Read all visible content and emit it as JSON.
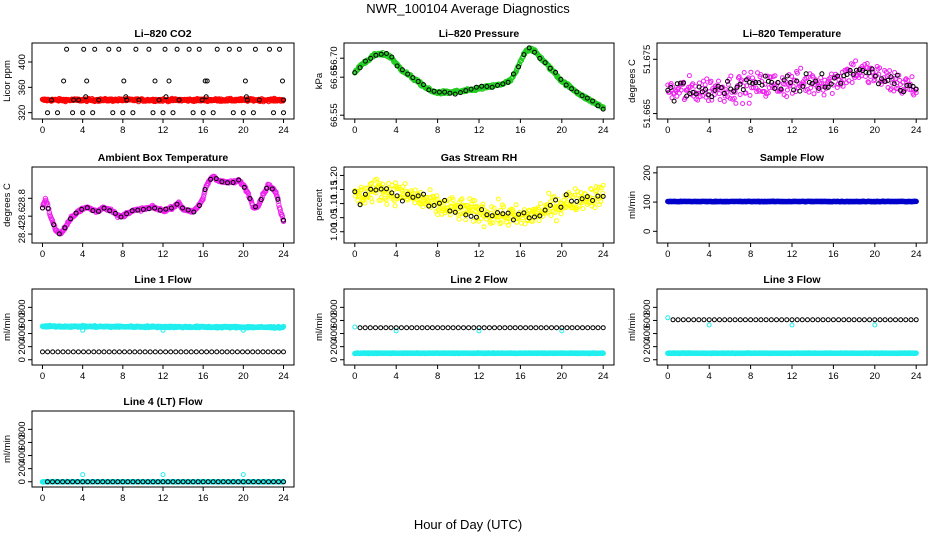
{
  "figure": {
    "title": "NWR_100104  Average Diagnostics",
    "xlabel": "Hour of Day (UTC)"
  },
  "chart_data": [
    {
      "id": "co2",
      "type": "scatter",
      "title": "Li–820 CO2",
      "ylabel": "Licor ppm",
      "xlim": [
        0,
        24
      ],
      "xticks": [
        "0",
        "4",
        "8",
        "12",
        "16",
        "20",
        "24"
      ],
      "ylim": [
        310,
        430
      ],
      "yticks": [
        "320",
        "360",
        "400"
      ],
      "series": [
        {
          "color": "#ff0000",
          "style": "dense-band",
          "x": [
            0,
            24
          ],
          "y": [
            340,
            340
          ],
          "noise": 2.0,
          "n": 420
        },
        {
          "color": "#000000",
          "style": "sparse",
          "x": [
            0.9,
            2.1,
            2.4,
            3.1,
            3.6,
            4.1,
            4.4,
            5.2,
            5.6,
            6.6,
            7.6,
            8.1,
            8.4,
            9.3,
            9.6,
            10.6,
            11.2,
            11.6,
            12.2,
            12.6,
            13.4,
            13.6,
            14.6,
            15.6,
            15.9,
            16.2,
            16.4,
            17.4,
            18.6,
            19.6,
            20.2,
            20.4,
            21.2,
            21.6,
            22.6,
            23.6,
            23.9,
            0.5,
            1.5,
            3.0,
            4.0,
            5.0,
            7.0,
            8.0,
            9.0,
            11.0,
            12.0,
            13.0,
            15.0,
            16.0,
            17.0,
            19.0,
            20.0,
            21.0,
            23.0,
            24.0,
            4.3,
            8.3,
            12.3,
            16.3,
            20.3,
            24.0
          ],
          "y": [
            340,
            370,
            420,
            340,
            340,
            420,
            370,
            420,
            340,
            420,
            420,
            370,
            340,
            420,
            340,
            420,
            370,
            340,
            420,
            370,
            420,
            340,
            420,
            420,
            340,
            370,
            370,
            420,
            420,
            420,
            370,
            340,
            420,
            340,
            420,
            420,
            370,
            320,
            320,
            320,
            320,
            320,
            320,
            320,
            320,
            320,
            320,
            320,
            320,
            320,
            320,
            320,
            320,
            320,
            320,
            320,
            345,
            345,
            345,
            345,
            345,
            340
          ]
        }
      ]
    },
    {
      "id": "pressure",
      "type": "scatter",
      "title": "Li–820 Pressure",
      "ylabel": "kPa",
      "xlim": [
        0,
        24
      ],
      "xticks": [
        "0",
        "4",
        "8",
        "12",
        "16",
        "20",
        "24"
      ],
      "ylim": [
        66.54,
        66.74
      ],
      "yticks": [
        "66.55",
        "66.65",
        "66.70"
      ],
      "series": [
        {
          "color": "#22cc22",
          "style": "dense-curve",
          "noise": 0.004,
          "n": 420,
          "x": [
            0,
            0.5,
            1,
            1.5,
            2,
            3,
            3.6,
            4,
            4.5,
            5,
            5.5,
            6,
            7,
            7.5,
            8,
            9,
            10,
            11,
            12,
            13,
            14,
            15,
            15.5,
            16,
            16.5,
            17,
            17.5,
            18,
            18.5,
            19,
            19.5,
            20,
            21,
            22,
            23,
            24
          ],
          "y": [
            66.66,
            66.68,
            66.69,
            66.7,
            66.71,
            66.71,
            66.7,
            66.685,
            66.67,
            66.66,
            66.65,
            66.64,
            66.62,
            66.612,
            66.61,
            66.61,
            66.612,
            66.615,
            66.62,
            66.625,
            66.63,
            66.64,
            66.66,
            66.69,
            66.72,
            66.725,
            66.715,
            66.7,
            66.685,
            66.67,
            66.655,
            66.64,
            66.62,
            66.6,
            66.585,
            66.57
          ]
        },
        {
          "color": "#000000",
          "style": "curve-points",
          "noise": 0.005,
          "n": 48,
          "x": [
            0,
            0.5,
            1,
            1.5,
            2,
            3,
            3.6,
            4,
            4.5,
            5,
            5.5,
            6,
            7,
            7.5,
            8,
            9,
            10,
            11,
            12,
            13,
            14,
            15,
            15.5,
            16,
            16.5,
            17,
            17.5,
            18,
            18.5,
            19,
            19.5,
            20,
            21,
            22,
            23,
            24
          ],
          "y": [
            66.66,
            66.68,
            66.69,
            66.7,
            66.71,
            66.71,
            66.7,
            66.685,
            66.67,
            66.66,
            66.65,
            66.64,
            66.62,
            66.612,
            66.61,
            66.61,
            66.612,
            66.615,
            66.62,
            66.625,
            66.63,
            66.64,
            66.66,
            66.69,
            66.72,
            66.725,
            66.715,
            66.7,
            66.685,
            66.67,
            66.655,
            66.64,
            66.62,
            66.6,
            66.585,
            66.57
          ]
        }
      ]
    },
    {
      "id": "temperature",
      "type": "scatter",
      "title": "Li–820 Temperature",
      "ylabel": "degrees C",
      "xlim": [
        0,
        24
      ],
      "xticks": [
        "0",
        "4",
        "8",
        "12",
        "16",
        "20",
        "24"
      ],
      "ylim": [
        51.664,
        51.678
      ],
      "yticks": [
        "51.665",
        "51.675"
      ],
      "series": [
        {
          "color": "#ee22ee",
          "style": "noisy-trend",
          "noise": 0.0025,
          "n": 300,
          "x": [
            0,
            4,
            8,
            12,
            16,
            18,
            20,
            24
          ],
          "y": [
            51.669,
            51.6695,
            51.67,
            51.6705,
            51.671,
            51.673,
            51.672,
            51.6695
          ]
        },
        {
          "color": "#000000",
          "style": "noisy-trend",
          "noise": 0.0018,
          "n": 80,
          "x": [
            0,
            4,
            8,
            12,
            16,
            18,
            20,
            24
          ],
          "y": [
            51.669,
            51.6695,
            51.67,
            51.6705,
            51.671,
            51.673,
            51.672,
            51.6695
          ]
        }
      ]
    },
    {
      "id": "boxtemp",
      "type": "scatter",
      "title": "Ambient Box Temperature",
      "ylabel": "degrees C",
      "xlim": [
        0,
        24
      ],
      "xticks": [
        "0",
        "4",
        "8",
        "12",
        "16",
        "20",
        "24"
      ],
      "ylim": [
        28.3,
        29.15
      ],
      "yticks": [
        "28.4",
        "28.6",
        "28.8"
      ],
      "series": [
        {
          "color": "#ee22ee",
          "style": "dense-curve",
          "noise": 0.015,
          "n": 420,
          "x": [
            0,
            0.3,
            0.8,
            1.3,
            1.8,
            2.3,
            3,
            3.5,
            4,
            4.5,
            5,
            5.5,
            6,
            7,
            7.5,
            8,
            8.5,
            9,
            10,
            11,
            11.5,
            12,
            13,
            13.5,
            14,
            15,
            15.5,
            16,
            16.2,
            16.6,
            17,
            17.5,
            18,
            19,
            19.5,
            20,
            20.5,
            21,
            21.5,
            22,
            22.5,
            23,
            23.3,
            23.7,
            24
          ],
          "y": [
            28.7,
            28.8,
            28.6,
            28.45,
            28.4,
            28.48,
            28.6,
            28.65,
            28.68,
            28.7,
            28.67,
            28.65,
            28.7,
            28.66,
            28.6,
            28.6,
            28.64,
            28.66,
            28.68,
            28.7,
            28.68,
            28.66,
            28.7,
            28.75,
            28.68,
            28.65,
            28.7,
            28.8,
            28.9,
            29.0,
            29.05,
            29.0,
            28.98,
            28.98,
            29.0,
            28.95,
            28.85,
            28.7,
            28.72,
            28.85,
            28.95,
            28.9,
            28.85,
            28.65,
            28.55
          ]
        },
        {
          "color": "#000000",
          "style": "curve-points",
          "noise": 0.012,
          "n": 44,
          "x": [
            0,
            0.3,
            0.8,
            1.3,
            1.8,
            2.3,
            3,
            3.5,
            4,
            4.5,
            5,
            5.5,
            6,
            7,
            7.5,
            8,
            8.5,
            9,
            10,
            11,
            11.5,
            12,
            13,
            13.5,
            14,
            15,
            15.5,
            16,
            16.2,
            16.6,
            17,
            17.5,
            18,
            19,
            19.5,
            20,
            20.5,
            21,
            21.5,
            22,
            22.5,
            23,
            23.3,
            23.7,
            24
          ],
          "y": [
            28.7,
            28.8,
            28.6,
            28.45,
            28.4,
            28.48,
            28.6,
            28.65,
            28.68,
            28.7,
            28.67,
            28.65,
            28.7,
            28.66,
            28.6,
            28.6,
            28.64,
            28.66,
            28.68,
            28.7,
            28.68,
            28.66,
            28.7,
            28.75,
            28.68,
            28.65,
            28.7,
            28.8,
            28.9,
            29.0,
            29.05,
            29.0,
            28.98,
            28.98,
            29.0,
            28.95,
            28.85,
            28.7,
            28.72,
            28.85,
            28.95,
            28.9,
            28.85,
            28.65,
            28.55
          ]
        }
      ]
    },
    {
      "id": "rh",
      "type": "scatter",
      "title": "Gas Stream RH",
      "ylabel": "percent",
      "xlim": [
        0,
        24
      ],
      "xticks": [
        "0",
        "4",
        "8",
        "12",
        "16",
        "20",
        "24"
      ],
      "ylim": [
        0.96,
        1.23
      ],
      "yticks": [
        "1.00",
        "1.05",
        "1.10",
        "1.15",
        "1.20"
      ],
      "series": [
        {
          "color": "#ffff00",
          "style": "noisy-trend",
          "noise": 0.04,
          "n": 420,
          "x": [
            0,
            2,
            4,
            6,
            8,
            10,
            12,
            14,
            16,
            18,
            20,
            22,
            24
          ],
          "y": [
            1.12,
            1.15,
            1.14,
            1.12,
            1.09,
            1.08,
            1.07,
            1.06,
            1.05,
            1.07,
            1.1,
            1.12,
            1.13
          ]
        },
        {
          "color": "#000000",
          "style": "noisy-trend",
          "noise": 0.03,
          "n": 48,
          "x": [
            0,
            2,
            4,
            6,
            8,
            10,
            12,
            14,
            16,
            18,
            20,
            22,
            24
          ],
          "y": [
            1.12,
            1.15,
            1.14,
            1.12,
            1.09,
            1.08,
            1.07,
            1.06,
            1.05,
            1.07,
            1.1,
            1.12,
            1.13
          ]
        }
      ]
    },
    {
      "id": "sampleflow",
      "type": "scatter",
      "title": "Sample Flow",
      "ylabel": "ml/min",
      "xlim": [
        0,
        24
      ],
      "xticks": [
        "0",
        "4",
        "8",
        "12",
        "16",
        "20",
        "24"
      ],
      "ylim": [
        -40,
        220
      ],
      "yticks": [
        "0",
        "100",
        "200"
      ],
      "series": [
        {
          "color": "#000000",
          "style": "flat-points",
          "x": [
            0,
            24
          ],
          "y": [
            102,
            102
          ],
          "noise": 1,
          "n": 48
        },
        {
          "color": "#0000cc",
          "style": "dense-band",
          "x": [
            0,
            24
          ],
          "y": [
            102,
            102
          ],
          "noise": 1,
          "n": 420
        }
      ]
    },
    {
      "id": "line1",
      "type": "scatter",
      "title": "Line 1 Flow",
      "ylabel": "ml/min",
      "xlim": [
        0,
        24
      ],
      "xticks": [
        "0",
        "4",
        "8",
        "12",
        "16",
        "20",
        "24"
      ],
      "ylim": [
        -80,
        1080
      ],
      "yticks": [
        "0",
        "200",
        "400",
        "600",
        "800"
      ],
      "series": [
        {
          "color": "#22eeee",
          "style": "dense-band",
          "x": [
            0,
            8,
            16,
            24
          ],
          "y": [
            510,
            505,
            500,
            495
          ],
          "noise": 12,
          "n": 420
        },
        {
          "color": "#22eeee",
          "style": "sparse",
          "x": [
            4,
            12,
            20
          ],
          "y": [
            450,
            450,
            450
          ]
        },
        {
          "color": "#000000",
          "style": "flat-points",
          "x": [
            0,
            24
          ],
          "y": [
            120,
            120
          ],
          "noise": 2,
          "n": 48
        }
      ]
    },
    {
      "id": "line2",
      "type": "scatter",
      "title": "Line 2 Flow",
      "ylabel": "ml/min",
      "xlim": [
        0,
        24
      ],
      "xticks": [
        "0",
        "4",
        "8",
        "12",
        "16",
        "20",
        "24"
      ],
      "ylim": [
        -80,
        1080
      ],
      "yticks": [
        "0",
        "200",
        "400",
        "600",
        "800"
      ],
      "series": [
        {
          "color": "#22eeee",
          "style": "dense-band",
          "x": [
            0,
            24
          ],
          "y": [
            100,
            100
          ],
          "noise": 4,
          "n": 420
        },
        {
          "color": "#22eeee",
          "style": "sparse",
          "x": [
            0,
            4,
            12,
            20
          ],
          "y": [
            500,
            440,
            440,
            440
          ]
        },
        {
          "color": "#000000",
          "style": "flat-points",
          "x": [
            0.5,
            24
          ],
          "y": [
            490,
            490
          ],
          "noise": 2,
          "n": 48
        }
      ]
    },
    {
      "id": "line3",
      "type": "scatter",
      "title": "Line 3 Flow",
      "ylabel": "ml/min",
      "xlim": [
        0,
        24
      ],
      "xticks": [
        "0",
        "4",
        "8",
        "12",
        "16",
        "20",
        "24"
      ],
      "ylim": [
        -80,
        1080
      ],
      "yticks": [
        "0",
        "200",
        "400",
        "600",
        "800"
      ],
      "series": [
        {
          "color": "#22eeee",
          "style": "dense-band",
          "x": [
            0,
            24
          ],
          "y": [
            100,
            100
          ],
          "noise": 4,
          "n": 420
        },
        {
          "color": "#22eeee",
          "style": "sparse",
          "x": [
            0,
            4,
            12,
            20
          ],
          "y": [
            640,
            530,
            530,
            530
          ]
        },
        {
          "color": "#000000",
          "style": "flat-points",
          "x": [
            0.5,
            24
          ],
          "y": [
            610,
            610
          ],
          "noise": 2,
          "n": 48
        }
      ]
    },
    {
      "id": "line4",
      "type": "scatter",
      "title": "Line 4 (LT) Flow",
      "ylabel": "ml/min",
      "xlim": [
        0,
        24
      ],
      "xticks": [
        "0",
        "4",
        "8",
        "12",
        "16",
        "20",
        "24"
      ],
      "ylim": [
        -80,
        1080
      ],
      "yticks": [
        "0",
        "200",
        "400",
        "600",
        "800"
      ],
      "series": [
        {
          "color": "#22eeee",
          "style": "dense-band",
          "x": [
            0,
            24
          ],
          "y": [
            0,
            0
          ],
          "noise": 3,
          "n": 420
        },
        {
          "color": "#22eeee",
          "style": "sparse",
          "x": [
            4,
            12,
            20
          ],
          "y": [
            110,
            110,
            110
          ]
        },
        {
          "color": "#000000",
          "style": "flat-points",
          "x": [
            0.5,
            24
          ],
          "y": [
            0,
            0
          ],
          "noise": 2,
          "n": 48
        }
      ]
    }
  ]
}
